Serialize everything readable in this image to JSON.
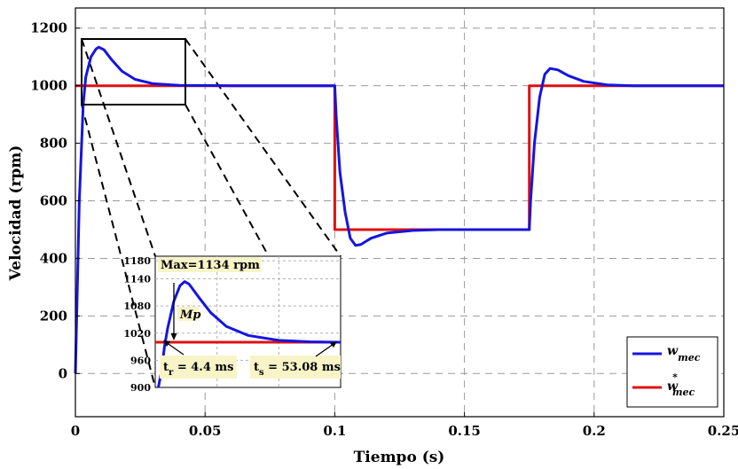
{
  "chart_data": [
    {
      "type": "line",
      "title": "",
      "xlabel": "Tiempo (s)",
      "ylabel": "Velocidad (rpm)",
      "xlim": [
        0,
        0.25
      ],
      "ylim": [
        -150,
        1270
      ],
      "x_ticks": [
        "0",
        "0.05",
        "0.1",
        "0.15",
        "0.2",
        "0.25"
      ],
      "y_ticks": [
        "0",
        "200",
        "400",
        "600",
        "800",
        "1000",
        "1200"
      ],
      "grid": true,
      "legend_position": "bottom-right",
      "series": [
        {
          "name": "w_mec",
          "legend_main": "w",
          "legend_sub": "mec",
          "color": "#1515e0",
          "points": [
            [
              0,
              0
            ],
            [
              0.0015,
              600
            ],
            [
              0.003,
              935
            ],
            [
              0.004,
              1030
            ],
            [
              0.006,
              1100
            ],
            [
              0.008,
              1128
            ],
            [
              0.009,
              1134
            ],
            [
              0.011,
              1125
            ],
            [
              0.014,
              1090
            ],
            [
              0.018,
              1050
            ],
            [
              0.023,
              1022
            ],
            [
              0.03,
              1007
            ],
            [
              0.04,
              1001
            ],
            [
              0.06,
              1000
            ],
            [
              0.1,
              1000
            ],
            [
              0.1005,
              900
            ],
            [
              0.102,
              700
            ],
            [
              0.104,
              560
            ],
            [
              0.106,
              470
            ],
            [
              0.108,
              445
            ],
            [
              0.11,
              448
            ],
            [
              0.114,
              470
            ],
            [
              0.12,
              488
            ],
            [
              0.13,
              497
            ],
            [
              0.14,
              500
            ],
            [
              0.175,
              500
            ],
            [
              0.1755,
              600
            ],
            [
              0.177,
              800
            ],
            [
              0.179,
              960
            ],
            [
              0.181,
              1040
            ],
            [
              0.183,
              1060
            ],
            [
              0.186,
              1055
            ],
            [
              0.19,
              1035
            ],
            [
              0.196,
              1015
            ],
            [
              0.205,
              1003
            ],
            [
              0.215,
              1000
            ],
            [
              0.25,
              1000
            ]
          ]
        },
        {
          "name": "w*_mec",
          "legend_main": "w",
          "legend_sup": "*",
          "legend_sub": "mec",
          "color": "#e01010",
          "points": [
            [
              0,
              1000
            ],
            [
              0.1,
              1000
            ],
            [
              0.1,
              500
            ],
            [
              0.175,
              500
            ],
            [
              0.175,
              1000
            ],
            [
              0.25,
              1000
            ]
          ]
        }
      ]
    },
    {
      "type": "line",
      "role": "inset-zoom",
      "xlim": [
        0,
        0.06
      ],
      "ylim": [
        900,
        1190
      ],
      "y_ticks": [
        "900",
        "960",
        "1020",
        "1080",
        "1140",
        "1180"
      ],
      "grid": true,
      "series": [
        {
          "name": "w_mec",
          "color": "#1515e0",
          "points": [
            [
              0.001,
              900
            ],
            [
              0.002,
              935
            ],
            [
              0.003,
              990
            ],
            [
              0.004,
              1030
            ],
            [
              0.006,
              1090
            ],
            [
              0.008,
              1125
            ],
            [
              0.0095,
              1134
            ],
            [
              0.011,
              1128
            ],
            [
              0.014,
              1100
            ],
            [
              0.018,
              1065
            ],
            [
              0.023,
              1035
            ],
            [
              0.03,
              1015
            ],
            [
              0.04,
              1004
            ],
            [
              0.05,
              1001
            ],
            [
              0.06,
              1000
            ]
          ]
        },
        {
          "name": "w*_mec",
          "color": "#e01010",
          "points": [
            [
              0,
              1000
            ],
            [
              0.06,
              1000
            ]
          ]
        }
      ],
      "annotations": {
        "max_label": "Max=1134 rpm",
        "mp_label": "Mp",
        "tr_main": "t",
        "tr_sub": "r",
        "tr_value": " = 4.4 ms",
        "ts_main": "t",
        "ts_sub": "s",
        "ts_value": " = 53.08 ms",
        "label_bg": "#f8f4c8"
      }
    }
  ]
}
